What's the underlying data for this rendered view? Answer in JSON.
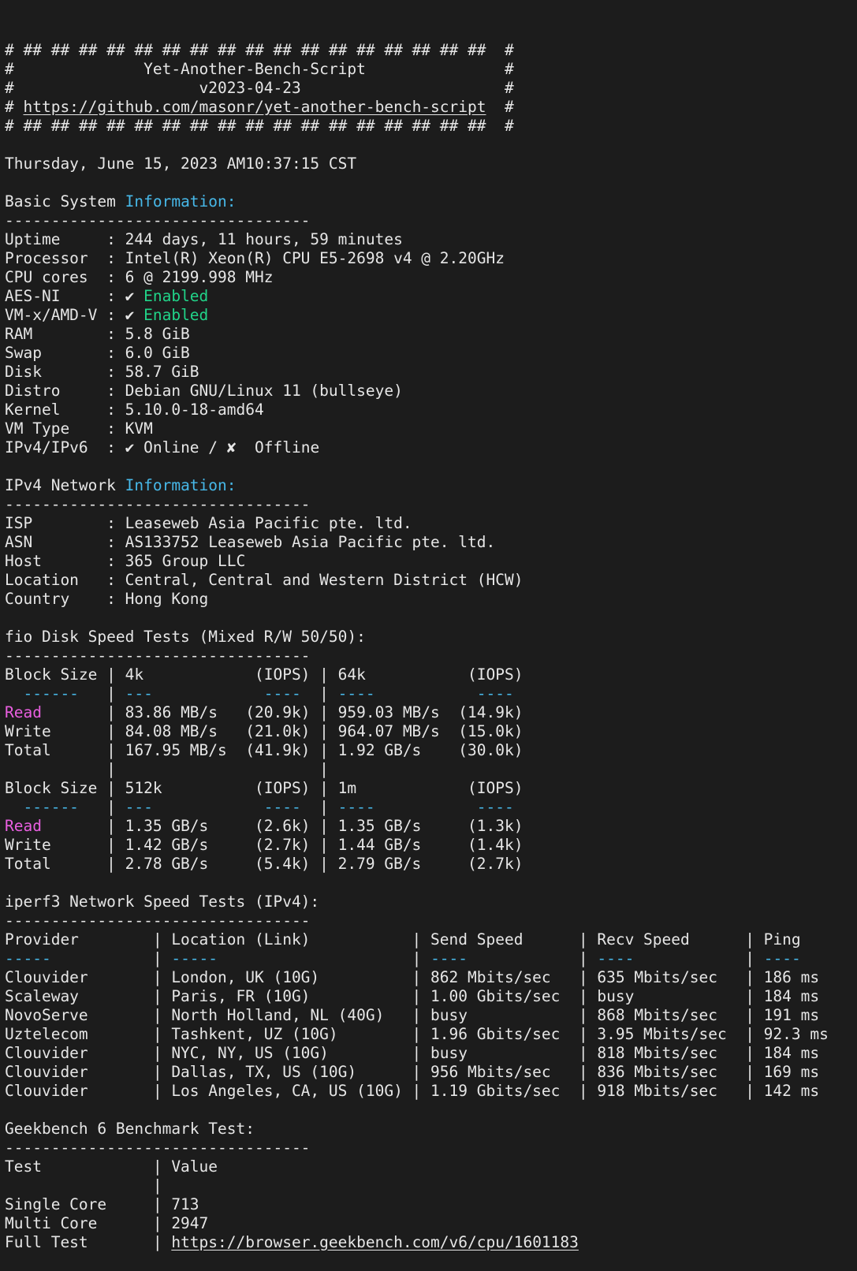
{
  "colors": {
    "background": "#1c1c1c",
    "foreground": "#e6e6e6",
    "accent_cyan": "#47b8e8",
    "accent_green": "#21d489",
    "accent_magenta": "#e95fe0"
  },
  "terminal": {
    "lines": [
      {
        "name": "ascii-border",
        "segments": [
          {
            "text": "# ## ## ## ## ## ## ## ## ## ## ## ## ## ## ## ## ##  #",
            "color": "fg"
          }
        ]
      },
      {
        "name": "app-title",
        "segments": [
          {
            "text": "#              Yet-Another-Bench-Script               #",
            "color": "fg"
          }
        ]
      },
      {
        "name": "app-version",
        "segments": [
          {
            "text": "#                    v2023-04-23                      #",
            "color": "fg"
          }
        ]
      },
      {
        "name": "repo-link-line",
        "segments": [
          {
            "text": "# ",
            "color": "fg"
          },
          {
            "text": "https://github.com/masonr/yet-another-bench-script",
            "color": "fg",
            "underline": true,
            "name": "github-repo-link",
            "interactable": true
          },
          {
            "text": "  #",
            "color": "fg"
          }
        ]
      },
      {
        "name": "ascii-border",
        "segments": [
          {
            "text": "# ## ## ## ## ## ## ## ## ## ## ## ## ## ## ## ## ##  #",
            "color": "fg"
          }
        ]
      },
      {
        "name": "blank-line",
        "segments": []
      },
      {
        "name": "timestamp",
        "segments": [
          {
            "text": "Thursday, June 15, 2023 AM10:37:15 CST",
            "color": "fg"
          }
        ]
      },
      {
        "name": "blank-line",
        "segments": []
      },
      {
        "name": "section-header-basic-info",
        "segments": [
          {
            "text": "Basic System ",
            "color": "fg"
          },
          {
            "text": "Information:",
            "color": "cyan"
          }
        ]
      },
      {
        "name": "section-separator",
        "segments": [
          {
            "text": "---------------------------------",
            "color": "fg"
          }
        ]
      },
      {
        "name": "uptime-row",
        "segments": [
          {
            "text": "Uptime     : 244 days, 11 hours, 59 minutes",
            "color": "fg"
          }
        ]
      },
      {
        "name": "processor-row",
        "segments": [
          {
            "text": "Processor  : Intel(R) Xeon(R) CPU E5-2698 v4 @ 2.20GHz",
            "color": "fg"
          }
        ]
      },
      {
        "name": "cpu-cores-row",
        "segments": [
          {
            "text": "CPU cores  : 6 @ 2199.998 MHz",
            "color": "fg"
          }
        ]
      },
      {
        "name": "aes-ni-row",
        "segments": [
          {
            "text": "AES-NI     : ",
            "color": "fg"
          },
          {
            "text": "✔ ",
            "color": "fg",
            "name": "check-icon"
          },
          {
            "text": "Enabled",
            "color": "green"
          }
        ]
      },
      {
        "name": "vmx-amdv-row",
        "segments": [
          {
            "text": "VM-x/AMD-V : ",
            "color": "fg"
          },
          {
            "text": "✔ ",
            "color": "fg",
            "name": "check-icon"
          },
          {
            "text": "Enabled",
            "color": "green"
          }
        ]
      },
      {
        "name": "ram-row",
        "segments": [
          {
            "text": "RAM        : 5.8 GiB",
            "color": "fg"
          }
        ]
      },
      {
        "name": "swap-row",
        "segments": [
          {
            "text": "Swap       : 6.0 GiB",
            "color": "fg"
          }
        ]
      },
      {
        "name": "disk-row",
        "segments": [
          {
            "text": "Disk       : 58.7 GiB",
            "color": "fg"
          }
        ]
      },
      {
        "name": "distro-row",
        "segments": [
          {
            "text": "Distro     : Debian GNU/Linux 11 (bullseye)",
            "color": "fg"
          }
        ]
      },
      {
        "name": "kernel-row",
        "segments": [
          {
            "text": "Kernel     : 5.10.0-18-amd64",
            "color": "fg"
          }
        ]
      },
      {
        "name": "vm-type-row",
        "segments": [
          {
            "text": "VM Type    : KVM",
            "color": "fg"
          }
        ]
      },
      {
        "name": "ipv4-ipv6-row",
        "segments": [
          {
            "text": "IPv4/IPv6  : ",
            "color": "fg"
          },
          {
            "text": "✔ ",
            "color": "fg",
            "name": "check-icon"
          },
          {
            "text": "Online / ",
            "color": "fg"
          },
          {
            "text": "✘  ",
            "color": "fg",
            "name": "cross-icon"
          },
          {
            "text": "Offline",
            "color": "fg"
          }
        ]
      },
      {
        "name": "blank-line",
        "segments": []
      },
      {
        "name": "section-header-ipv4-network",
        "segments": [
          {
            "text": "IPv4 Network ",
            "color": "fg"
          },
          {
            "text": "Information:",
            "color": "cyan"
          }
        ]
      },
      {
        "name": "section-separator",
        "segments": [
          {
            "text": "---------------------------------",
            "color": "fg"
          }
        ]
      },
      {
        "name": "isp-row",
        "segments": [
          {
            "text": "ISP        : Leaseweb Asia Pacific pte. ltd.",
            "color": "fg"
          }
        ]
      },
      {
        "name": "asn-row",
        "segments": [
          {
            "text": "ASN        : AS133752 Leaseweb Asia Pacific pte. ltd.",
            "color": "fg"
          }
        ]
      },
      {
        "name": "host-row",
        "segments": [
          {
            "text": "Host       : 365 Group LLC",
            "color": "fg"
          }
        ]
      },
      {
        "name": "location-row",
        "segments": [
          {
            "text": "Location   : Central, Central and Western District (HCW)",
            "color": "fg"
          }
        ]
      },
      {
        "name": "country-row",
        "segments": [
          {
            "text": "Country    : Hong Kong",
            "color": "fg"
          }
        ]
      },
      {
        "name": "blank-line",
        "segments": []
      },
      {
        "name": "section-header-fio",
        "segments": [
          {
            "text": "fio Disk Speed Tests (Mixed R/W 50/50):",
            "color": "fg"
          }
        ]
      },
      {
        "name": "section-separator",
        "segments": [
          {
            "text": "---------------------------------",
            "color": "fg"
          }
        ]
      },
      {
        "name": "fio-header-row-1",
        "segments": [
          {
            "text": "Block Size | 4k            (IOPS) | 64k           (IOPS)",
            "color": "fg"
          }
        ]
      },
      {
        "name": "fio-dash-row",
        "segments": [
          {
            "text": "  ------   ",
            "color": "cyan"
          },
          {
            "text": "|",
            "color": "fg"
          },
          {
            "text": " ---            ----  ",
            "color": "cyan"
          },
          {
            "text": "|",
            "color": "fg"
          },
          {
            "text": " ----           ---- ",
            "color": "cyan"
          }
        ]
      },
      {
        "name": "fio-read-row-1",
        "segments": [
          {
            "text": "Read",
            "color": "magenta"
          },
          {
            "text": "       | 83.86 MB/s   (20.9k) | 959.03 MB/s  (14.9k)",
            "color": "fg"
          }
        ]
      },
      {
        "name": "fio-write-row-1",
        "segments": [
          {
            "text": "Write      | 84.08 MB/s   (21.0k) | 964.07 MB/s  (15.0k)",
            "color": "fg"
          }
        ]
      },
      {
        "name": "fio-total-row-1",
        "segments": [
          {
            "text": "Total      | 167.95 MB/s  (41.9k) | 1.92 GB/s    (30.0k)",
            "color": "fg"
          }
        ]
      },
      {
        "name": "fio-spacer-row",
        "segments": [
          {
            "text": "           |                      |",
            "color": "fg"
          }
        ]
      },
      {
        "name": "fio-header-row-2",
        "segments": [
          {
            "text": "Block Size | 512k          (IOPS) | 1m            (IOPS)",
            "color": "fg"
          }
        ]
      },
      {
        "name": "fio-dash-row",
        "segments": [
          {
            "text": "  ------   ",
            "color": "cyan"
          },
          {
            "text": "|",
            "color": "fg"
          },
          {
            "text": " ---            ----  ",
            "color": "cyan"
          },
          {
            "text": "|",
            "color": "fg"
          },
          {
            "text": " ----           ---- ",
            "color": "cyan"
          }
        ]
      },
      {
        "name": "fio-read-row-2",
        "segments": [
          {
            "text": "Read",
            "color": "magenta"
          },
          {
            "text": "       | 1.35 GB/s     (2.6k) | 1.35 GB/s     (1.3k)",
            "color": "fg"
          }
        ]
      },
      {
        "name": "fio-write-row-2",
        "segments": [
          {
            "text": "Write      | 1.42 GB/s     (2.7k) | 1.44 GB/s     (1.4k)",
            "color": "fg"
          }
        ]
      },
      {
        "name": "fio-total-row-2",
        "segments": [
          {
            "text": "Total      | 2.78 GB/s     (5.4k) | 2.79 GB/s     (2.7k)",
            "color": "fg"
          }
        ]
      },
      {
        "name": "blank-line",
        "segments": []
      },
      {
        "name": "section-header-iperf3",
        "segments": [
          {
            "text": "iperf3 Network Speed Tests (IPv4):",
            "color": "fg"
          }
        ]
      },
      {
        "name": "section-separator",
        "segments": [
          {
            "text": "---------------------------------",
            "color": "fg"
          }
        ]
      },
      {
        "name": "iperf3-header-row",
        "segments": [
          {
            "text": "Provider        | Location (Link)           | Send Speed      | Recv Speed      | Ping",
            "color": "fg"
          }
        ]
      },
      {
        "name": "iperf3-dash-row",
        "segments": [
          {
            "text": "-----",
            "color": "cyan"
          },
          {
            "text": "           | ",
            "color": "fg"
          },
          {
            "text": "-----",
            "color": "cyan"
          },
          {
            "text": "                     | ",
            "color": "fg"
          },
          {
            "text": "----",
            "color": "cyan"
          },
          {
            "text": "            | ",
            "color": "fg"
          },
          {
            "text": "----",
            "color": "cyan"
          },
          {
            "text": "            | ",
            "color": "fg"
          },
          {
            "text": "----",
            "color": "cyan"
          }
        ]
      },
      {
        "name": "iperf3-row-london",
        "segments": [
          {
            "text": "Clouvider       | London, UK (10G)          | 862 Mbits/sec   | 635 Mbits/sec   | 186 ms",
            "color": "fg"
          }
        ]
      },
      {
        "name": "iperf3-row-paris",
        "segments": [
          {
            "text": "Scaleway        | Paris, FR (10G)           | 1.00 Gbits/sec  | busy            | 184 ms",
            "color": "fg"
          }
        ]
      },
      {
        "name": "iperf3-row-north-holland",
        "segments": [
          {
            "text": "NovoServe       | North Holland, NL (40G)   | busy            | 868 Mbits/sec   | 191 ms",
            "color": "fg"
          }
        ]
      },
      {
        "name": "iperf3-row-tashkent",
        "segments": [
          {
            "text": "Uztelecom       | Tashkent, UZ (10G)        | 1.96 Gbits/sec  | 3.95 Mbits/sec  | 92.3 ms",
            "color": "fg"
          }
        ]
      },
      {
        "name": "iperf3-row-nyc",
        "segments": [
          {
            "text": "Clouvider       | NYC, NY, US (10G)         | busy            | 818 Mbits/sec   | 184 ms",
            "color": "fg"
          }
        ]
      },
      {
        "name": "iperf3-row-dallas",
        "segments": [
          {
            "text": "Clouvider       | Dallas, TX, US (10G)      | 956 Mbits/sec   | 836 Mbits/sec   | 169 ms",
            "color": "fg"
          }
        ]
      },
      {
        "name": "iperf3-row-los-angeles",
        "segments": [
          {
            "text": "Clouvider       | Los Angeles, CA, US (10G) | 1.19 Gbits/sec  | 918 Mbits/sec   | 142 ms",
            "color": "fg"
          }
        ]
      },
      {
        "name": "blank-line",
        "segments": []
      },
      {
        "name": "section-header-geekbench",
        "segments": [
          {
            "text": "Geekbench 6 Benchmark Test:",
            "color": "fg"
          }
        ]
      },
      {
        "name": "section-separator",
        "segments": [
          {
            "text": "---------------------------------",
            "color": "fg"
          }
        ]
      },
      {
        "name": "geekbench-header-row",
        "segments": [
          {
            "text": "Test            | Value",
            "color": "fg"
          }
        ]
      },
      {
        "name": "geekbench-spacer-row",
        "segments": [
          {
            "text": "                | ",
            "color": "fg"
          }
        ]
      },
      {
        "name": "geekbench-single-core-row",
        "segments": [
          {
            "text": "Single Core     | 713",
            "color": "fg"
          }
        ]
      },
      {
        "name": "geekbench-multi-core-row",
        "segments": [
          {
            "text": "Multi Core      | 2947",
            "color": "fg"
          }
        ]
      },
      {
        "name": "geekbench-full-test-row",
        "segments": [
          {
            "text": "Full Test       | ",
            "color": "fg"
          },
          {
            "text": "https://browser.geekbench.com/v6/cpu/1601183",
            "color": "fg",
            "underline": true,
            "name": "geekbench-result-link",
            "interactable": true
          }
        ]
      }
    ]
  }
}
